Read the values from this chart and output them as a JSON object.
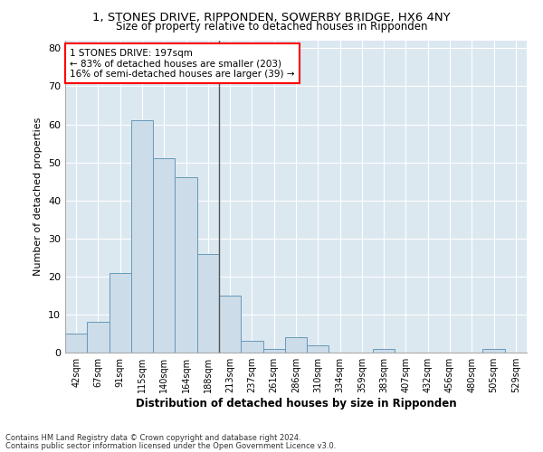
{
  "title1": "1, STONES DRIVE, RIPPONDEN, SOWERBY BRIDGE, HX6 4NY",
  "title2": "Size of property relative to detached houses in Ripponden",
  "xlabel": "Distribution of detached houses by size in Ripponden",
  "ylabel": "Number of detached properties",
  "bar_color": "#ccdce8",
  "bar_edge_color": "#6699bb",
  "background_color": "#dce8f0",
  "bin_labels": [
    "42sqm",
    "67sqm",
    "91sqm",
    "115sqm",
    "140sqm",
    "164sqm",
    "188sqm",
    "213sqm",
    "237sqm",
    "261sqm",
    "286sqm",
    "310sqm",
    "334sqm",
    "359sqm",
    "383sqm",
    "407sqm",
    "432sqm",
    "456sqm",
    "480sqm",
    "505sqm",
    "529sqm"
  ],
  "values": [
    5,
    8,
    21,
    61,
    51,
    46,
    26,
    15,
    3,
    1,
    4,
    2,
    0,
    0,
    1,
    0,
    0,
    0,
    0,
    1,
    0
  ],
  "ylim": [
    0,
    82
  ],
  "yticks": [
    0,
    10,
    20,
    30,
    40,
    50,
    60,
    70,
    80
  ],
  "property_label": "1 STONES DRIVE: 197sqm",
  "annotation_line1": "← 83% of detached houses are smaller (203)",
  "annotation_line2": "16% of semi-detached houses are larger (39) →",
  "vline_color": "#555555",
  "vline_x_index": 6.5,
  "footnote1": "Contains HM Land Registry data © Crown copyright and database right 2024.",
  "footnote2": "Contains public sector information licensed under the Open Government Licence v3.0."
}
